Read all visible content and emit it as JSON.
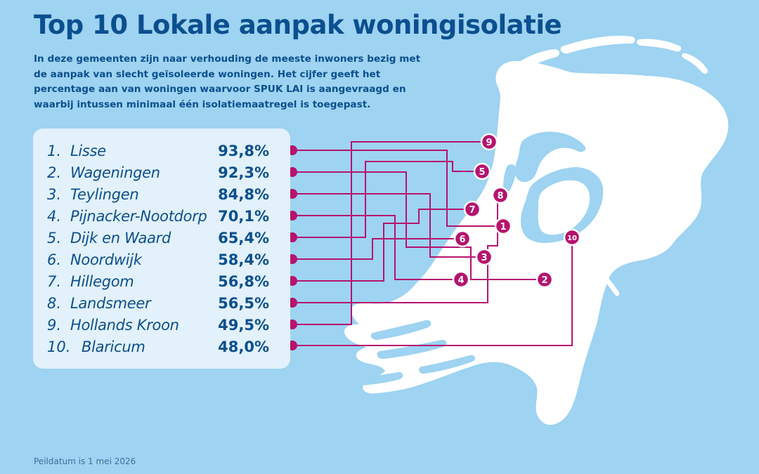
{
  "title": "Top 10 Lokale aanpak woningisolatie",
  "intro": "In deze gemeenten zijn naar verhouding de meeste inwoners bezig met de aanpak van slecht geïsoleerde woningen. Het cijfer geeft het percentage aan van woningen waarvoor SPUK LAI is aangevraagd en waarbij intussen minimaal één isolatiemaatregel is toegepast.",
  "ranking": [
    {
      "rank": "1.",
      "name": "Lisse",
      "value": "93,8%"
    },
    {
      "rank": "2.",
      "name": "Wageningen",
      "value": "92,3%"
    },
    {
      "rank": "3.",
      "name": "Teylingen",
      "value": "84,8%"
    },
    {
      "rank": "4.",
      "name": "Pijnacker-Nootdorp",
      "value": "70,1%"
    },
    {
      "rank": "5.",
      "name": "Dijk en Waard",
      "value": "65,4%"
    },
    {
      "rank": "6.",
      "name": "Noordwijk",
      "value": "58,4%"
    },
    {
      "rank": "7.",
      "name": "Hillegom",
      "value": "56,8%"
    },
    {
      "rank": "8.",
      "name": "Landsmeer",
      "value": "56,5%"
    },
    {
      "rank": "9.",
      "name": "Hollands Kroon",
      "value": "49,5%"
    },
    {
      "rank": "10.",
      "name": "Blaricum",
      "value": "48,0%"
    }
  ],
  "map_markers": [
    "1",
    "2",
    "3",
    "4",
    "5",
    "6",
    "7",
    "8",
    "9",
    "10"
  ],
  "footnote": "Peildatum is 1 mei 2026",
  "colors": {
    "background": "#9ed3f1",
    "land": "#ffffff",
    "panel": "#e2f1fb",
    "text": "#0b4f8f",
    "accent": "#b5136f"
  }
}
